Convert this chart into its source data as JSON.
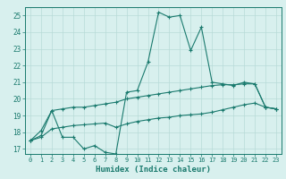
{
  "xlabel": "Humidex (Indice chaleur)",
  "x_values": [
    0,
    1,
    2,
    3,
    4,
    5,
    6,
    7,
    8,
    9,
    10,
    11,
    12,
    13,
    14,
    15,
    16,
    17,
    18,
    19,
    20,
    21,
    22,
    23
  ],
  "line1_y": [
    17.5,
    17.8,
    19.3,
    17.7,
    17.7,
    17.0,
    17.2,
    16.8,
    16.7,
    20.4,
    20.5,
    22.2,
    25.2,
    24.9,
    25.0,
    22.9,
    24.3,
    21.0,
    20.9,
    20.8,
    21.0,
    20.9,
    19.5,
    19.4
  ],
  "line2_y": [
    17.5,
    18.1,
    19.3,
    19.4,
    19.5,
    19.5,
    19.6,
    19.7,
    19.8,
    20.0,
    20.1,
    20.2,
    20.3,
    20.4,
    20.5,
    20.6,
    20.7,
    20.8,
    20.85,
    20.85,
    20.9,
    20.9,
    19.5,
    19.4
  ],
  "line3_y": [
    17.5,
    17.7,
    18.2,
    18.3,
    18.4,
    18.45,
    18.5,
    18.55,
    18.3,
    18.5,
    18.65,
    18.75,
    18.85,
    18.9,
    19.0,
    19.05,
    19.1,
    19.2,
    19.35,
    19.5,
    19.65,
    19.75,
    19.5,
    19.4
  ],
  "color": "#1a7a6e",
  "bg_color": "#d8f0ee",
  "grid_color": "#b8dbd8",
  "ylim_min": 16.7,
  "ylim_max": 25.5,
  "yticks": [
    17,
    18,
    19,
    20,
    21,
    22,
    23,
    24,
    25
  ],
  "marker": "+"
}
